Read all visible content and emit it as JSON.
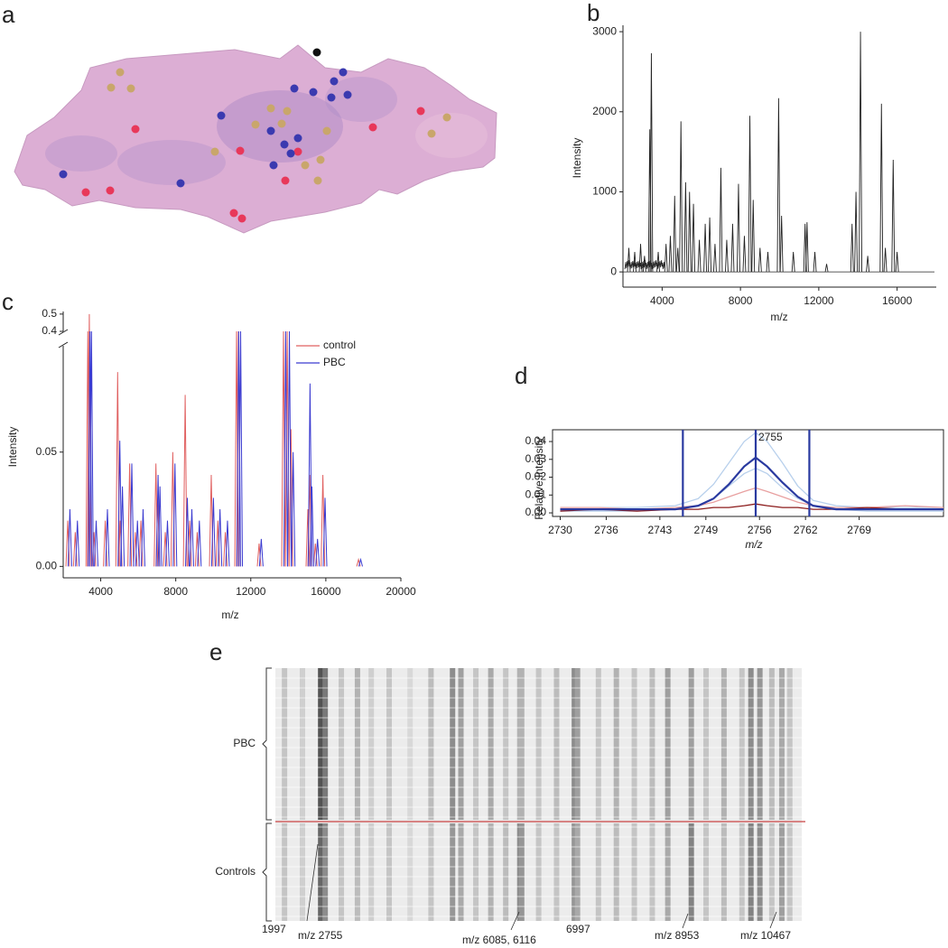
{
  "image_panel": {
    "label": "a"
  },
  "chart_data": [
    {
      "type": "spectrum",
      "panel": "b",
      "x_label": "m/z",
      "y_label": "Intensity",
      "color": "#222222",
      "x": [
        2300,
        2600,
        2900,
        3100,
        3370,
        3450,
        3800,
        4200,
        4420,
        4640,
        4800,
        4960,
        5200,
        5400,
        5600,
        5900,
        6200,
        6430,
        6700,
        7000,
        7300,
        7600,
        7900,
        8200,
        8480,
        8650,
        9000,
        9400,
        9950,
        10100,
        10700,
        11300,
        11400,
        11800,
        12400,
        13700,
        13900,
        14130,
        14500,
        15200,
        15400,
        15800,
        16000
      ],
      "values": [
        300,
        250,
        350,
        200,
        1780,
        2730,
        250,
        350,
        450,
        950,
        300,
        1880,
        1120,
        1000,
        850,
        400,
        600,
        680,
        350,
        1300,
        400,
        600,
        1100,
        450,
        1950,
        900,
        300,
        250,
        2170,
        700,
        250,
        600,
        620,
        250,
        100,
        600,
        1000,
        3000,
        200,
        2100,
        300,
        1400,
        250
      ],
      "xlim": [
        2000,
        18000
      ],
      "xticks": [
        4000,
        8000,
        12000,
        16000
      ],
      "ylim": [
        -190,
        3080
      ],
      "yticks": [
        0,
        1000,
        2000,
        3000
      ]
    },
    {
      "type": "spectrum",
      "panel": "c",
      "x_label": "m/z",
      "y_label": "Intensity",
      "x": [
        2300,
        2700,
        3370,
        3450,
        3700,
        4300,
        4960,
        5100,
        5600,
        5900,
        6200,
        7000,
        7100,
        7500,
        7900,
        8560,
        8800,
        9200,
        9950,
        10300,
        10700,
        11300,
        11400,
        12500,
        13800,
        14000,
        14200,
        15100,
        15200,
        15500,
        15900,
        17800
      ],
      "series": [
        {
          "name": "control",
          "color": "#e06060",
          "values": [
            0.02,
            0.015,
            0.4,
            0.5,
            0.015,
            0.02,
            0.085,
            0.02,
            0.045,
            0.015,
            0.02,
            0.045,
            0.03,
            0.015,
            0.05,
            0.075,
            0.02,
            0.015,
            0.04,
            0.02,
            0.015,
            0.4,
            0.4,
            0.01,
            0.4,
            0.4,
            0.06,
            0.025,
            0.04,
            0.01,
            0.04,
            0.003
          ]
        },
        {
          "name": "PBC",
          "color": "#3a3ad0",
          "values": [
            0.025,
            0.02,
            0.4,
            0.4,
            0.02,
            0.025,
            0.055,
            0.035,
            0.045,
            0.02,
            0.025,
            0.04,
            0.035,
            0.02,
            0.045,
            0.03,
            0.025,
            0.02,
            0.03,
            0.025,
            0.02,
            0.4,
            0.4,
            0.012,
            0.4,
            0.4,
            0.05,
            0.08,
            0.035,
            0.012,
            0.03,
            0.003
          ]
        }
      ],
      "xlim": [
        2000,
        20000
      ],
      "xticks": [
        4000,
        8000,
        12000,
        16000,
        20000
      ],
      "ylim": [
        -0.005,
        0.515
      ],
      "ybreak": [
        0.0965,
        0.4
      ],
      "yticks": [
        {
          "value": 0,
          "label": "0.00"
        },
        {
          "value": 0.05,
          "label": "0.05"
        },
        0.4,
        0.5
      ]
    },
    {
      "type": "line",
      "panel": "d",
      "x_label": "m/z",
      "y_label": "Relative Intensity",
      "annotation": "2755",
      "vlines": [
        2746,
        2755.5,
        2762.5
      ],
      "vline_color": "#2a3aa0",
      "x": [
        2730,
        2735,
        2740,
        2745,
        2748,
        2750,
        2752,
        2754,
        2755.5,
        2757,
        2759,
        2761,
        2763,
        2766,
        2770,
        2775,
        2780
      ],
      "series": [
        {
          "color": "#b8d0ec",
          "values": [
            0.003,
            0.003,
            0.003,
            0.004,
            0.008,
            0.016,
            0.028,
            0.04,
            0.045,
            0.04,
            0.028,
            0.015,
            0.007,
            0.004,
            0.003,
            0.003,
            0.003
          ]
        },
        {
          "color": "#b8d0ec",
          "values": [
            0.001,
            0.001,
            0.001,
            0.002,
            0.004,
            0.008,
            0.015,
            0.022,
            0.025,
            0.022,
            0.014,
            0.008,
            0.004,
            0.002,
            0.001,
            0.001,
            0.001
          ]
        },
        {
          "color": "#e8a0a0",
          "values": [
            0.003,
            0.003,
            0.002,
            0.003,
            0.004,
            0.006,
            0.009,
            0.012,
            0.014,
            0.012,
            0.009,
            0.006,
            0.004,
            0.003,
            0.003,
            0.004,
            0.003
          ]
        },
        {
          "color": "#8b1a1a",
          "values": [
            0.001,
            0.002,
            0.001,
            0.002,
            0.002,
            0.003,
            0.003,
            0.004,
            0.005,
            0.004,
            0.003,
            0.003,
            0.002,
            0.002,
            0.003,
            0.002,
            0.002
          ]
        },
        {
          "color": "#2a3aa0",
          "values": [
            0.002,
            0.002,
            0.002,
            0.002,
            0.004,
            0.008,
            0.016,
            0.026,
            0.031,
            0.026,
            0.017,
            0.009,
            0.004,
            0.002,
            0.002,
            0.002,
            0.002
          ]
        }
      ],
      "xlim": [
        2729,
        2780
      ],
      "xticks": [
        2730,
        2736,
        2743,
        2749,
        2756,
        2762,
        2769
      ],
      "ylim": [
        -0.002,
        0.0466
      ],
      "yticks": [
        {
          "value": 0,
          "label": "0.00"
        },
        {
          "value": 0.01,
          "label": "0.01"
        },
        {
          "value": 0.02,
          "label": "0.02"
        },
        {
          "value": 0.03,
          "label": "0.03"
        },
        {
          "value": 0.04,
          "label": "0.04"
        }
      ]
    },
    {
      "type": "heatmap",
      "panel": "e",
      "x": [
        2150,
        2450,
        2755,
        2830,
        3100,
        3370,
        3600,
        3900,
        4250,
        4600,
        4960,
        5100,
        5350,
        5600,
        5850,
        6085,
        6116,
        6400,
        6700,
        6997,
        7050,
        7400,
        7700,
        8000,
        8300,
        8560,
        8953,
        9200,
        9500,
        9800,
        9950,
        10100,
        10300,
        10467,
        10600
      ],
      "series": [
        {
          "name": "PBC",
          "values": [
            0.2,
            0.15,
            0.8,
            0.6,
            0.2,
            0.3,
            0.15,
            0.2,
            0.1,
            0.25,
            0.5,
            0.4,
            0.2,
            0.35,
            0.2,
            0.3,
            0.3,
            0.2,
            0.25,
            0.5,
            0.4,
            0.2,
            0.3,
            0.2,
            0.25,
            0.4,
            0.4,
            0.2,
            0.3,
            0.2,
            0.5,
            0.45,
            0.25,
            0.35,
            0.2
          ]
        },
        {
          "name": "Controls",
          "values": [
            0.2,
            0.15,
            0.7,
            0.5,
            0.2,
            0.25,
            0.15,
            0.2,
            0.1,
            0.2,
            0.45,
            0.35,
            0.2,
            0.3,
            0.25,
            0.5,
            0.45,
            0.2,
            0.2,
            0.45,
            0.35,
            0.2,
            0.25,
            0.2,
            0.2,
            0.35,
            0.55,
            0.2,
            0.25,
            0.2,
            0.55,
            0.5,
            0.2,
            0.4,
            0.2
          ]
        }
      ],
      "xlim": [
        1997,
        10800
      ],
      "separator_color": "#d06060",
      "annotations": [
        "1997",
        "m/z 2755",
        "m/z 6085, 6116",
        "6997",
        "m/z 8953",
        "m/z 10467"
      ]
    }
  ]
}
